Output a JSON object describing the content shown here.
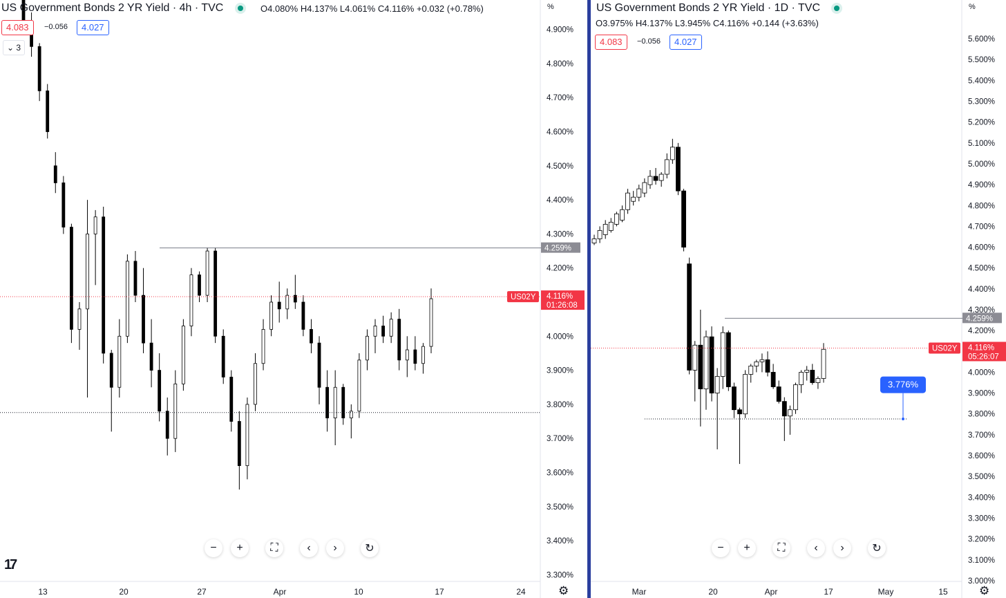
{
  "left": {
    "title": "US Government Bonds 2 YR Yield · 4h · TVC",
    "ohlc": "O4.080%  H4.137%  L4.061%  C4.116%  +0.032 (+0.78%)",
    "sell": "4.083",
    "spread": "−0.056",
    "buy": "4.027",
    "indicators_toggle": "3",
    "percent_unit": "%",
    "y_ticks": [
      "4.900%",
      "4.800%",
      "4.700%",
      "4.600%",
      "4.500%",
      "4.400%",
      "4.300%",
      "4.200%",
      "4.100%",
      "4.000%",
      "3.900%",
      "3.800%",
      "3.700%",
      "3.600%",
      "3.500%",
      "3.400%",
      "3.300%"
    ],
    "x_ticks": [
      "13",
      "20",
      "27",
      "Apr",
      "10",
      "17",
      "24"
    ],
    "symbol_tag": "US02Y",
    "price_tag": "4.116%",
    "countdown": "01:26:08",
    "level_tag": "4.259%"
  },
  "right": {
    "title": "US Government Bonds 2 YR Yield · 1D · TVC",
    "ohlc": "O3.975%  H4.137%  L3.945%  C4.116%  +0.144 (+3.63%)",
    "sell": "4.083",
    "spread": "−0.056",
    "buy": "4.027",
    "percent_unit": "%",
    "y_ticks": [
      "5.600%",
      "5.500%",
      "5.400%",
      "5.300%",
      "5.200%",
      "5.100%",
      "5.000%",
      "4.900%",
      "4.800%",
      "4.700%",
      "4.600%",
      "4.500%",
      "4.400%",
      "4.300%",
      "4.200%",
      "4.100%",
      "4.000%",
      "3.900%",
      "3.800%",
      "3.700%",
      "3.600%",
      "3.500%",
      "3.400%",
      "3.300%",
      "3.200%",
      "3.100%",
      "3.000%"
    ],
    "x_ticks": [
      "Mar",
      "20",
      "Apr",
      "17",
      "May",
      "15"
    ],
    "symbol_tag": "US02Y",
    "price_tag": "4.116%",
    "countdown": "05:26:07",
    "level_tag": "4.259%",
    "alert_tag": "3.776%"
  },
  "toolbar_icons": [
    "zoom-out-icon",
    "zoom-in-icon",
    "fullscreen-icon",
    "scroll-left-icon",
    "scroll-right-icon",
    "reset-icon"
  ],
  "colors": {
    "up": "#ffffff",
    "down": "#000000",
    "price_line": "#f23645",
    "level_line": "#787b86",
    "alert": "#2962ff",
    "live_dot": "#089981",
    "divider": "#2b3f9e"
  },
  "chart_data": [
    {
      "type": "candlestick",
      "title": "US Government Bonds 2 YR Yield · 4h · TVC",
      "ylabel": "%",
      "ylim": [
        3.25,
        4.95
      ],
      "x_ticks": [
        "13",
        "20",
        "27",
        "Apr",
        "10",
        "17",
        "24"
      ],
      "candles": [
        [
          4.99,
          5.02,
          4.9,
          4.92
        ],
        [
          4.92,
          4.95,
          4.82,
          4.85
        ],
        [
          4.85,
          4.86,
          4.69,
          4.72
        ],
        [
          4.72,
          4.74,
          4.58,
          4.6
        ],
        [
          4.5,
          4.54,
          4.42,
          4.45
        ],
        [
          4.45,
          4.47,
          4.3,
          4.32
        ],
        [
          4.32,
          4.33,
          3.98,
          4.02
        ],
        [
          4.02,
          4.1,
          3.96,
          4.08
        ],
        [
          4.08,
          4.4,
          3.82,
          4.3
        ],
        [
          4.3,
          4.37,
          4.15,
          4.35
        ],
        [
          4.35,
          4.38,
          3.92,
          3.95
        ],
        [
          3.95,
          3.96,
          3.72,
          3.85
        ],
        [
          3.85,
          4.05,
          3.82,
          4.0
        ],
        [
          4.0,
          4.24,
          3.98,
          4.22
        ],
        [
          4.22,
          4.25,
          4.1,
          4.12
        ],
        [
          4.12,
          4.2,
          3.95,
          3.98
        ],
        [
          3.98,
          4.05,
          3.85,
          3.9
        ],
        [
          3.9,
          3.95,
          3.75,
          3.78
        ],
        [
          3.78,
          3.82,
          3.65,
          3.7
        ],
        [
          3.7,
          3.9,
          3.66,
          3.86
        ],
        [
          3.86,
          4.05,
          3.84,
          4.03
        ],
        [
          4.03,
          4.2,
          4.0,
          4.18
        ],
        [
          4.18,
          4.19,
          4.1,
          4.12
        ],
        [
          4.12,
          4.26,
          4.1,
          4.25
        ],
        [
          4.25,
          4.26,
          3.98,
          4.0
        ],
        [
          4.0,
          4.02,
          3.86,
          3.88
        ],
        [
          3.88,
          3.9,
          3.72,
          3.75
        ],
        [
          3.75,
          3.78,
          3.55,
          3.62
        ],
        [
          3.62,
          3.82,
          3.58,
          3.8
        ],
        [
          3.8,
          3.95,
          3.78,
          3.92
        ],
        [
          3.92,
          4.05,
          3.9,
          4.02
        ],
        [
          4.02,
          4.12,
          4.0,
          4.1
        ],
        [
          4.1,
          4.16,
          4.04,
          4.08
        ],
        [
          4.08,
          4.14,
          4.05,
          4.12
        ],
        [
          4.12,
          4.18,
          4.08,
          4.1
        ],
        [
          4.1,
          4.12,
          4.0,
          4.02
        ],
        [
          4.02,
          4.05,
          3.95,
          3.98
        ],
        [
          3.98,
          4.0,
          3.8,
          3.85
        ],
        [
          3.85,
          3.9,
          3.72,
          3.76
        ],
        [
          3.76,
          3.9,
          3.68,
          3.85
        ],
        [
          3.85,
          3.86,
          3.74,
          3.76
        ],
        [
          3.76,
          3.8,
          3.7,
          3.78
        ],
        [
          3.78,
          3.95,
          3.76,
          3.93
        ],
        [
          3.93,
          4.02,
          3.9,
          4.0
        ],
        [
          4.0,
          4.05,
          3.95,
          4.03
        ],
        [
          4.03,
          4.06,
          3.98,
          4.0
        ],
        [
          4.0,
          4.07,
          3.98,
          4.05
        ],
        [
          4.05,
          4.08,
          3.9,
          3.93
        ],
        [
          3.93,
          4.0,
          3.88,
          3.96
        ],
        [
          3.96,
          4.0,
          3.9,
          3.92
        ],
        [
          3.92,
          3.98,
          3.89,
          3.97
        ],
        [
          3.97,
          4.14,
          3.95,
          4.11
        ]
      ],
      "horizontal_levels": [
        {
          "label": "4.259%",
          "value": 4.259
        },
        {
          "label": "US02Y 4.116%",
          "value": 4.116
        },
        {
          "value": 3.776
        }
      ]
    },
    {
      "type": "candlestick",
      "title": "US Government Bonds 2 YR Yield · 1D · TVC",
      "ylabel": "%",
      "ylim": [
        2.94,
        5.65
      ],
      "x_ticks": [
        "Mar",
        "20",
        "Apr",
        "17",
        "May",
        "15"
      ],
      "candles": [
        [
          4.62,
          4.66,
          4.61,
          4.64
        ],
        [
          4.64,
          4.7,
          4.62,
          4.68
        ],
        [
          4.66,
          4.73,
          4.64,
          4.71
        ],
        [
          4.68,
          4.74,
          4.67,
          4.72
        ],
        [
          4.71,
          4.77,
          4.7,
          4.76
        ],
        [
          4.73,
          4.8,
          4.72,
          4.78
        ],
        [
          4.78,
          4.88,
          4.76,
          4.86
        ],
        [
          4.82,
          4.87,
          4.8,
          4.84
        ],
        [
          4.84,
          4.9,
          4.82,
          4.88
        ],
        [
          4.86,
          4.93,
          4.84,
          4.91
        ],
        [
          4.9,
          4.97,
          4.88,
          4.94
        ],
        [
          4.94,
          4.98,
          4.9,
          4.92
        ],
        [
          4.92,
          4.96,
          4.89,
          4.95
        ],
        [
          4.95,
          5.05,
          4.93,
          5.02
        ],
        [
          5.02,
          5.12,
          5.0,
          5.08
        ],
        [
          5.08,
          5.1,
          4.85,
          4.87
        ],
        [
          4.87,
          4.88,
          4.58,
          4.6
        ],
        [
          4.52,
          4.55,
          3.99,
          4.01
        ],
        [
          4.01,
          4.15,
          3.86,
          4.13
        ],
        [
          4.13,
          4.3,
          3.74,
          3.92
        ],
        [
          3.92,
          4.2,
          3.82,
          4.17
        ],
        [
          4.17,
          4.22,
          3.86,
          3.9
        ],
        [
          3.9,
          4.02,
          3.63,
          3.98
        ],
        [
          3.98,
          4.22,
          3.92,
          4.19
        ],
        [
          4.19,
          4.2,
          3.91,
          3.93
        ],
        [
          3.93,
          3.95,
          3.78,
          3.82
        ],
        [
          3.82,
          3.83,
          3.56,
          3.8
        ],
        [
          3.8,
          4.01,
          3.78,
          3.99
        ],
        [
          3.99,
          4.04,
          3.95,
          4.03
        ],
        [
          4.03,
          4.06,
          4.0,
          4.05
        ],
        [
          4.05,
          4.09,
          4.0,
          4.06
        ],
        [
          4.06,
          4.1,
          3.98,
          4.0
        ],
        [
          4.0,
          4.04,
          3.92,
          3.93
        ],
        [
          3.93,
          3.96,
          3.85,
          3.86
        ],
        [
          3.86,
          3.88,
          3.67,
          3.79
        ],
        [
          3.79,
          3.84,
          3.7,
          3.82
        ],
        [
          3.82,
          3.95,
          3.8,
          3.94
        ],
        [
          3.94,
          4.01,
          3.9,
          4.0
        ],
        [
          4.0,
          4.03,
          3.96,
          4.01
        ],
        [
          4.01,
          4.04,
          3.94,
          3.95
        ],
        [
          3.95,
          3.98,
          3.92,
          3.97
        ],
        [
          3.97,
          4.14,
          3.95,
          4.11
        ]
      ],
      "horizontal_levels": [
        {
          "label": "4.259%",
          "value": 4.259
        },
        {
          "label": "US02Y 4.116%",
          "value": 4.116
        },
        {
          "label": "3.776%",
          "value": 3.776
        }
      ]
    }
  ]
}
